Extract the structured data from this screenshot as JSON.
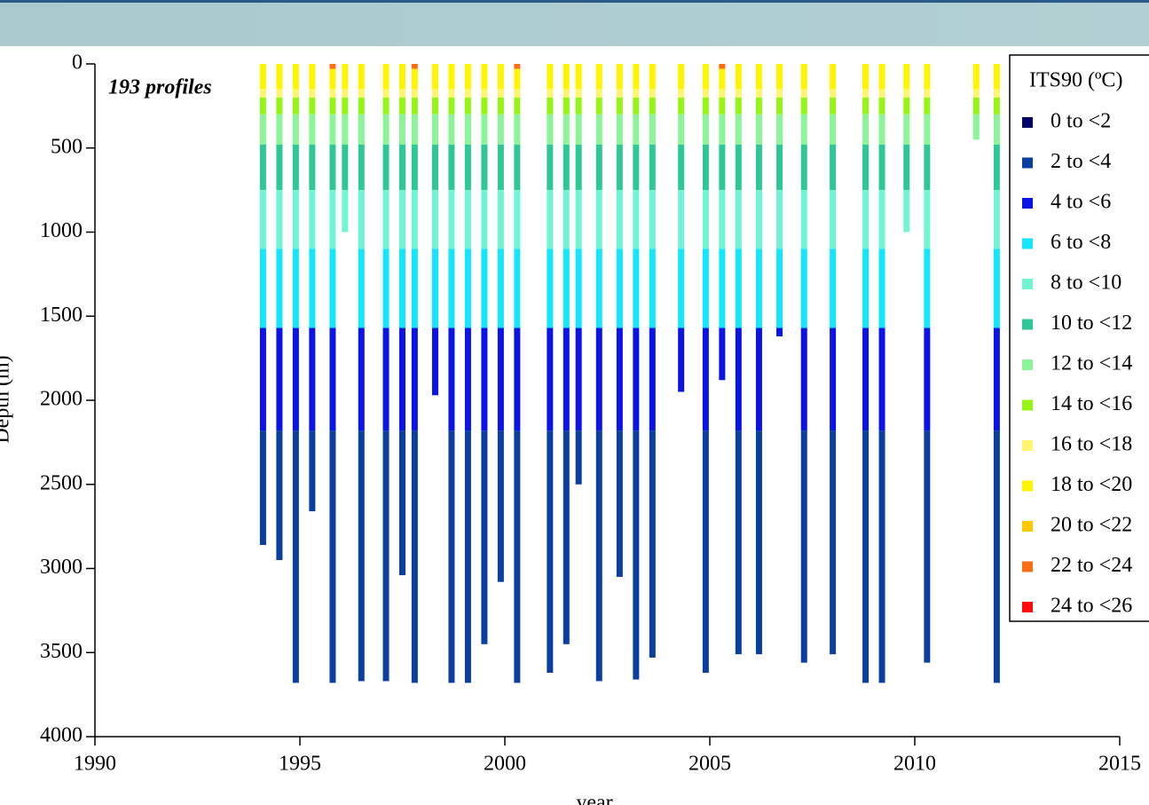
{
  "chart_data": {
    "type": "stacked_bar",
    "annotation": "193 profiles",
    "x_label": "year",
    "y_label": "Depth (m)",
    "legend_title": "ITS90 (ºC)",
    "xlim": [
      1990,
      2015
    ],
    "xticks": [
      1990,
      1995,
      2000,
      2005,
      2010,
      2015
    ],
    "ylim": [
      0,
      4000
    ],
    "yticks": [
      0,
      500,
      1000,
      1500,
      2000,
      2500,
      3000,
      3500,
      4000
    ],
    "y_inverted": true,
    "x": [
      1994.1,
      1994.5,
      1994.9,
      1995.3,
      1995.8,
      1996.1,
      1996.5,
      1997.1,
      1997.5,
      1997.8,
      1998.3,
      1998.7,
      1999.1,
      1999.5,
      1999.9,
      2000.3,
      2001.1,
      2001.5,
      2001.8,
      2002.3,
      2002.8,
      2003.2,
      2003.6,
      2004.3,
      2004.9,
      2005.3,
      2005.7,
      2006.2,
      2006.7,
      2007.3,
      2008.0,
      2008.8,
      2009.2,
      2009.8,
      2010.3,
      2011.5,
      2012.0
    ],
    "series": [
      {
        "name": "0 to <2",
        "color": "#000066",
        "values": [
          null,
          null,
          null,
          null,
          null,
          null,
          null,
          null,
          null,
          null,
          null,
          null,
          null,
          null,
          null,
          null,
          null,
          null,
          null,
          null,
          null,
          null,
          null,
          null,
          null,
          null,
          null,
          null,
          null,
          null,
          null,
          null,
          null,
          null,
          null,
          null,
          null
        ]
      },
      {
        "name": "2 to <4",
        "color": "#0a3fa0",
        "values": [
          680,
          770,
          1500,
          480,
          1500,
          null,
          1490,
          1490,
          860,
          1500,
          null,
          1500,
          1500,
          1270,
          900,
          1500,
          1440,
          1270,
          320,
          1490,
          870,
          1480,
          1350,
          null,
          1440,
          null,
          1330,
          1330,
          null,
          1380,
          1330,
          1500,
          1500,
          null,
          1380,
          null,
          1500
        ]
      },
      {
        "name": "4 to <6",
        "color": "#0a14e6",
        "values": [
          610,
          610,
          610,
          610,
          610,
          null,
          610,
          610,
          610,
          610,
          400,
          610,
          610,
          610,
          610,
          610,
          610,
          610,
          610,
          610,
          610,
          610,
          610,
          380,
          610,
          310,
          610,
          610,
          50,
          610,
          610,
          610,
          610,
          null,
          610,
          null,
          610
        ]
      },
      {
        "name": "6 to <8",
        "color": "#14e6ff",
        "values": [
          470,
          470,
          470,
          470,
          470,
          null,
          470,
          470,
          470,
          470,
          470,
          470,
          470,
          470,
          470,
          470,
          470,
          470,
          470,
          470,
          470,
          470,
          470,
          470,
          470,
          470,
          470,
          470,
          470,
          470,
          470,
          470,
          470,
          null,
          470,
          null,
          470
        ]
      },
      {
        "name": "8 to <10",
        "color": "#70f5d4",
        "values": [
          350,
          350,
          350,
          350,
          350,
          250,
          350,
          350,
          350,
          350,
          350,
          350,
          350,
          350,
          350,
          350,
          350,
          350,
          350,
          350,
          350,
          350,
          350,
          350,
          350,
          350,
          350,
          350,
          350,
          350,
          350,
          350,
          350,
          250,
          350,
          null,
          350
        ]
      },
      {
        "name": "10 to <12",
        "color": "#2ec896",
        "values": [
          270,
          270,
          270,
          270,
          270,
          270,
          270,
          270,
          270,
          270,
          270,
          270,
          270,
          270,
          270,
          270,
          270,
          270,
          270,
          270,
          270,
          270,
          270,
          270,
          270,
          270,
          270,
          270,
          270,
          270,
          270,
          270,
          270,
          270,
          270,
          null,
          270
        ]
      },
      {
        "name": "12 to <14",
        "color": "#8cf59a",
        "values": [
          180,
          180,
          180,
          180,
          180,
          180,
          180,
          180,
          180,
          180,
          180,
          180,
          180,
          180,
          180,
          180,
          180,
          180,
          180,
          180,
          180,
          180,
          180,
          180,
          180,
          180,
          180,
          180,
          180,
          180,
          180,
          180,
          180,
          180,
          180,
          150,
          180
        ]
      },
      {
        "name": "14 to <16",
        "color": "#96f514",
        "values": [
          100,
          100,
          100,
          100,
          100,
          100,
          100,
          100,
          100,
          100,
          100,
          100,
          100,
          100,
          100,
          100,
          100,
          100,
          100,
          100,
          100,
          100,
          100,
          100,
          100,
          100,
          100,
          100,
          100,
          100,
          100,
          100,
          100,
          100,
          100,
          100,
          100
        ]
      },
      {
        "name": "16 to <18",
        "color": "#fff56e",
        "values": [
          50,
          50,
          50,
          50,
          50,
          50,
          50,
          50,
          50,
          50,
          50,
          50,
          50,
          50,
          50,
          50,
          50,
          50,
          50,
          50,
          50,
          50,
          50,
          50,
          50,
          50,
          50,
          50,
          50,
          50,
          50,
          50,
          50,
          50,
          50,
          50,
          50
        ]
      },
      {
        "name": "18 to <20",
        "color": "#fff500",
        "values": [
          150,
          150,
          150,
          150,
          120,
          150,
          150,
          150,
          150,
          120,
          150,
          150,
          150,
          150,
          150,
          120,
          150,
          150,
          150,
          150,
          150,
          150,
          150,
          150,
          150,
          120,
          150,
          150,
          150,
          150,
          150,
          150,
          150,
          150,
          150,
          150,
          150
        ]
      },
      {
        "name": "20 to <22",
        "color": "#ffc800",
        "values": [
          null,
          null,
          null,
          null,
          null,
          null,
          null,
          null,
          null,
          null,
          null,
          null,
          null,
          null,
          null,
          null,
          null,
          null,
          null,
          null,
          null,
          null,
          null,
          null,
          null,
          null,
          null,
          null,
          null,
          null,
          null,
          null,
          null,
          null,
          null,
          null,
          null
        ]
      },
      {
        "name": "22 to <24",
        "color": "#ff6e14",
        "values": [
          null,
          null,
          null,
          null,
          30,
          null,
          null,
          null,
          null,
          30,
          null,
          null,
          null,
          null,
          null,
          30,
          null,
          null,
          null,
          null,
          null,
          null,
          null,
          null,
          null,
          30,
          null,
          null,
          null,
          null,
          null,
          null,
          null,
          null,
          null,
          null,
          null
        ]
      },
      {
        "name": "24 to <26",
        "color": "#ff0a0a",
        "values": [
          null,
          null,
          null,
          null,
          null,
          null,
          null,
          null,
          null,
          null,
          null,
          null,
          null,
          null,
          null,
          null,
          null,
          null,
          null,
          null,
          null,
          null,
          null,
          null,
          null,
          null,
          null,
          null,
          null,
          null,
          null,
          null,
          null,
          null,
          null,
          null,
          null
        ]
      }
    ]
  }
}
